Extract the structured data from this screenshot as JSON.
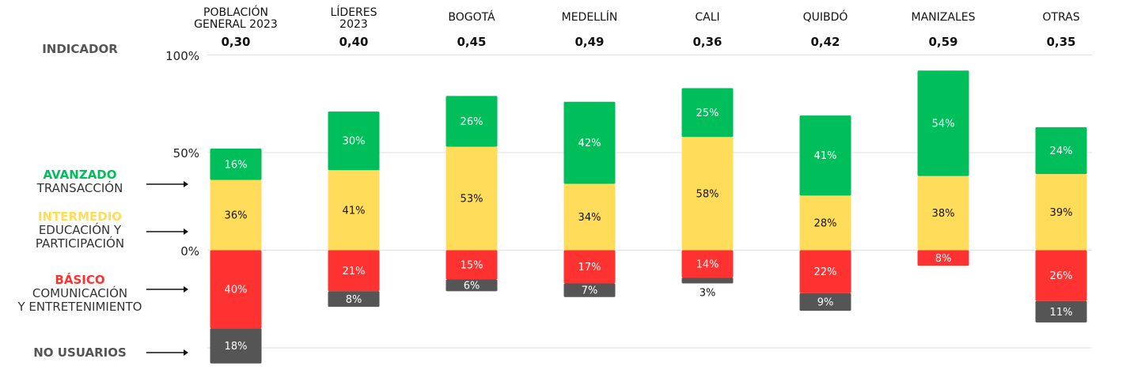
{
  "indicator_label": "INDICADOR",
  "legend": [
    {
      "key": "avanzado",
      "title": "AVANZADO",
      "subtitle": [
        "TRANSACCIÓN"
      ],
      "color": "#00be5a"
    },
    {
      "key": "intermedio",
      "title": "INTERMEDIO",
      "subtitle": [
        "EDUCACIÓN Y",
        "PARTICIPACIÓN"
      ],
      "color": "#ffdc5a"
    },
    {
      "key": "basico",
      "title": "BÁSICO",
      "subtitle": [
        "COMUNICACIÓN",
        "Y ENTRETENIMIENTO"
      ],
      "color": "#ff3232"
    },
    {
      "key": "no_usuarios",
      "title": "NO USUARIOS",
      "subtitle": [],
      "color": "#555555"
    }
  ],
  "chart_data": {
    "type": "bar",
    "stacked": true,
    "categories": [
      [
        "POBLACIÓN",
        "GENERAL 2023"
      ],
      [
        "LÍDERES",
        "2023"
      ],
      [
        "BOGOTÁ"
      ],
      [
        "MEDELLÍN"
      ],
      [
        "CALI"
      ],
      [
        "QUIBDÓ"
      ],
      [
        "MANIZALES"
      ],
      [
        "OTRAS"
      ]
    ],
    "indicator": [
      "0,30",
      "0,40",
      "0,45",
      "0,49",
      "0,36",
      "0,42",
      "0,59",
      "0,35"
    ],
    "series": [
      {
        "name": "AVANZADO",
        "direction": "up",
        "color": "#00be5a",
        "values": [
          16,
          30,
          26,
          42,
          25,
          41,
          54,
          24
        ]
      },
      {
        "name": "INTERMEDIO",
        "direction": "up",
        "color": "#ffdc5a",
        "values": [
          36,
          41,
          53,
          34,
          58,
          28,
          38,
          39
        ]
      },
      {
        "name": "BÁSICO",
        "direction": "down",
        "color": "#ff3232",
        "values": [
          40,
          21,
          15,
          17,
          14,
          22,
          8,
          26
        ]
      },
      {
        "name": "NO USUARIOS",
        "direction": "down",
        "color": "#555555",
        "values": [
          18,
          8,
          6,
          7,
          3,
          9,
          0,
          11
        ]
      }
    ],
    "yticks": [
      "100%",
      "50%",
      "0%"
    ],
    "ylim": [
      -50,
      100
    ],
    "grid": true
  }
}
